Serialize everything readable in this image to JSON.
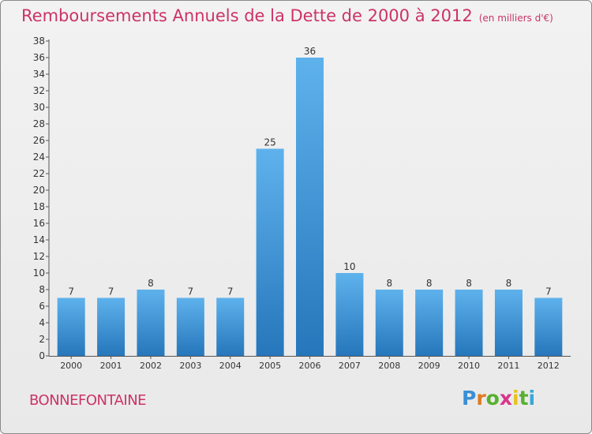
{
  "title": "Remboursements Annuels de la Dette de 2000 à 2012",
  "unit_label": "(en milliers d'€)",
  "commune": "BONNEFONTAINE",
  "logo": [
    "P",
    "r",
    "o",
    "x",
    "i",
    "t",
    "i"
  ],
  "colors": {
    "title": "#cc3366",
    "bar_light": "#5eb2ec",
    "bar_dark": "#2676bb",
    "axis": "#555555"
  },
  "chart_data": {
    "type": "bar",
    "title": "Remboursements Annuels de la Dette de 2000 à 2012",
    "xlabel": "",
    "ylabel": "",
    "ylim": [
      0,
      38
    ],
    "yticks": [
      0,
      2,
      4,
      6,
      8,
      10,
      12,
      14,
      16,
      18,
      20,
      22,
      24,
      26,
      28,
      30,
      32,
      34,
      36,
      38
    ],
    "categories": [
      "2000",
      "2001",
      "2002",
      "2003",
      "2004",
      "2005",
      "2006",
      "2007",
      "2008",
      "2009",
      "2010",
      "2011",
      "2012"
    ],
    "values": [
      7,
      7,
      8,
      7,
      7,
      25,
      36,
      10,
      8,
      8,
      8,
      8,
      7
    ],
    "grid": false,
    "legend": "none"
  }
}
